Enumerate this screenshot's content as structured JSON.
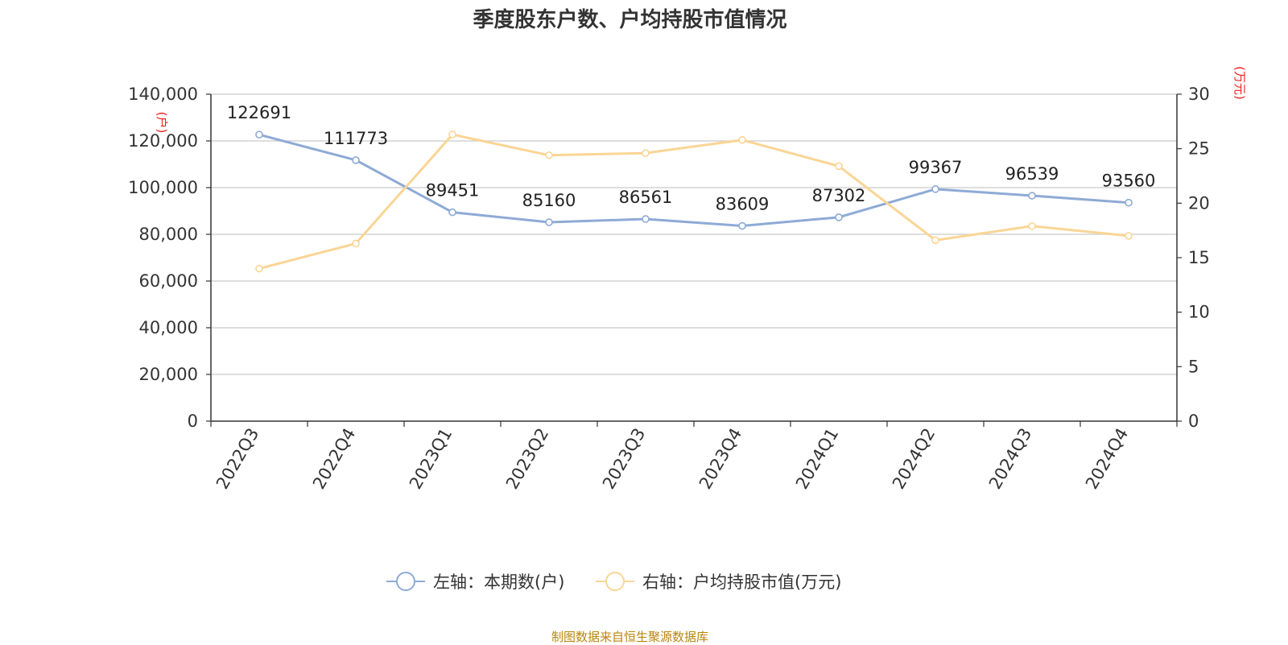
{
  "title": "季度股东户数、户均持股市值情况",
  "source": "制图数据来自恒生聚源数据库",
  "colors": {
    "left_series": "#8eaad6",
    "right_series": "#fad595",
    "axis_unit": "#e8201d",
    "grid": "#c9c9c9",
    "axis": "#333333",
    "text": "#333333"
  },
  "chart_data": {
    "type": "line",
    "categories": [
      "2022Q3",
      "2022Q4",
      "2023Q1",
      "2023Q2",
      "2023Q3",
      "2023Q4",
      "2024Q1",
      "2024Q2",
      "2024Q3",
      "2024Q4"
    ],
    "y_left": {
      "unit": "(户)",
      "ylim": [
        0,
        140000
      ],
      "ticks": [
        "0",
        "20,000",
        "40,000",
        "60,000",
        "80,000",
        "100,000",
        "120,000",
        "140,000"
      ]
    },
    "y_right": {
      "unit": "(万元)",
      "ylim": [
        0,
        30
      ],
      "ticks": [
        "0",
        "5",
        "10",
        "15",
        "20",
        "25",
        "30"
      ]
    },
    "series": [
      {
        "name": "左轴：本期数(户)",
        "axis": "left",
        "values": [
          122691,
          111773,
          89451,
          85160,
          86561,
          83609,
          87302,
          99367,
          96539,
          93560
        ],
        "labels": [
          "122691",
          "111773",
          "89451",
          "85160",
          "86561",
          "83609",
          "87302",
          "99367",
          "96539",
          "93560"
        ]
      },
      {
        "name": "右轴：户均持股市值(万元)",
        "axis": "right",
        "values": [
          14.0,
          16.3,
          26.3,
          24.4,
          24.6,
          25.8,
          23.4,
          16.6,
          17.9,
          17.0
        ]
      }
    ],
    "legend_position": "bottom-center",
    "grid": true
  }
}
